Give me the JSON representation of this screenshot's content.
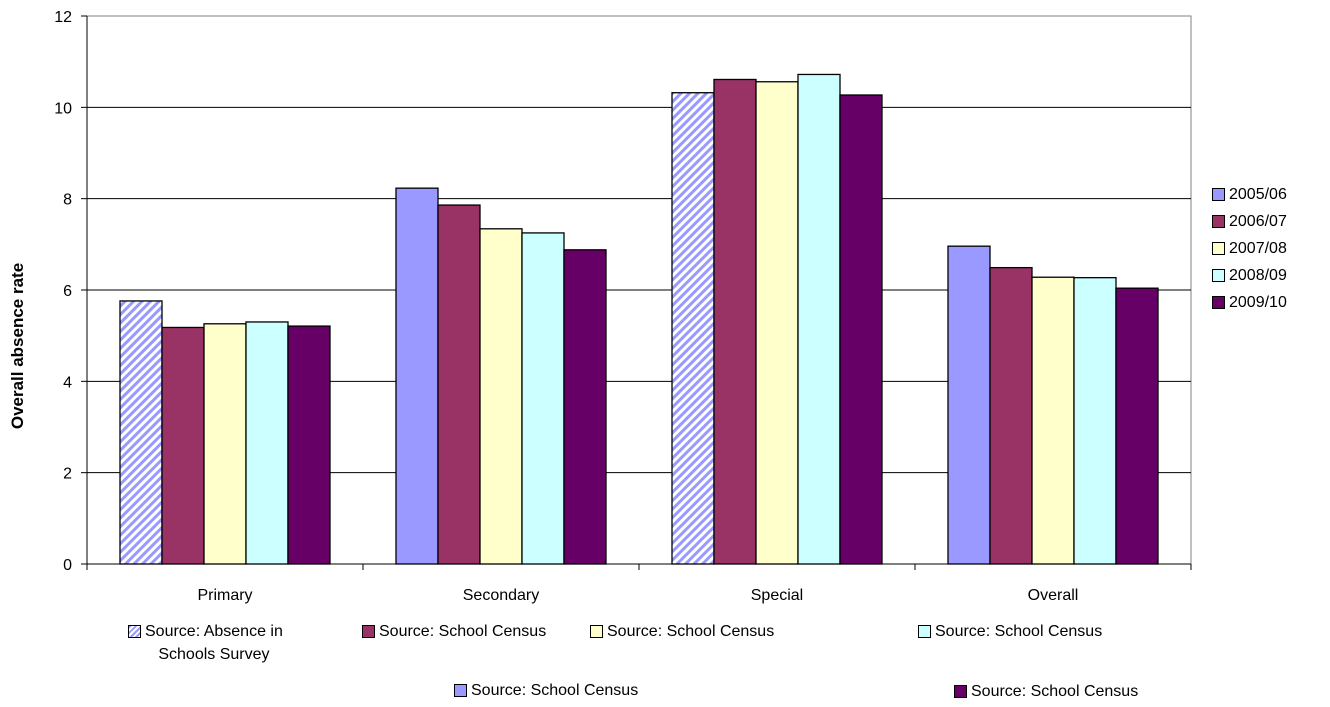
{
  "chart_data": {
    "type": "bar",
    "categories": [
      "Primary",
      "Secondary",
      "Special",
      "Overall"
    ],
    "ylabel": "Overall absence rate",
    "ylim": [
      0,
      12
    ],
    "yticks": [
      "0",
      "2",
      "4",
      "6",
      "8",
      "10",
      "12"
    ],
    "grid": true,
    "legend_placement": "right",
    "series": [
      {
        "name": "2005/06",
        "color": "#9999FF",
        "values": [
          5.76,
          8.23,
          10.32,
          6.96
        ]
      },
      {
        "name": "2006/07",
        "color": "#993366",
        "values": [
          5.18,
          7.86,
          10.61,
          6.49
        ]
      },
      {
        "name": "2007/08",
        "color": "#FFFFCC",
        "values": [
          5.26,
          7.34,
          10.56,
          6.28
        ]
      },
      {
        "name": "2008/09",
        "color": "#CCFFFF",
        "values": [
          5.3,
          7.25,
          10.72,
          6.27
        ]
      },
      {
        "name": "2009/10",
        "color": "#660066",
        "values": [
          5.21,
          6.88,
          10.27,
          6.04
        ]
      }
    ],
    "hatched_bars": [
      {
        "category": "Primary",
        "series": "2005/06"
      },
      {
        "category": "Special",
        "series": "2005/06"
      }
    ],
    "source_notes": [
      {
        "text": "Source: Absence in",
        "text2": "Schools Survey",
        "color": "#9999FF",
        "hatched": true
      },
      {
        "text": "Source: School Census",
        "color": "#993366"
      },
      {
        "text": "Source: School Census",
        "color": "#FFFFCC"
      },
      {
        "text": "Source: School Census",
        "color": "#CCFFFF"
      },
      {
        "text": "Source: School Census",
        "color": "#9999FF"
      },
      {
        "text": "Source: School Census",
        "color": "#660066"
      }
    ]
  }
}
